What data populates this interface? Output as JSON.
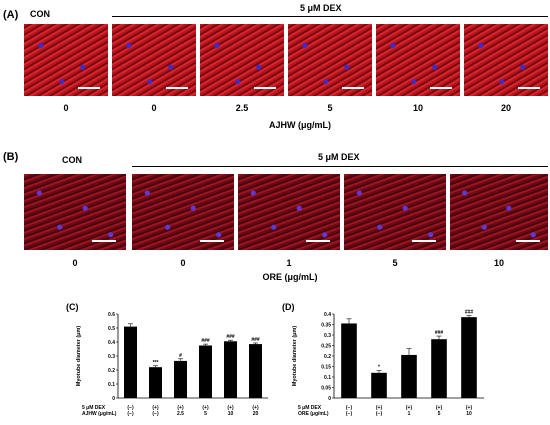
{
  "panelA": {
    "label": "(A)",
    "control": "CON",
    "treatment": "5 μM DEX",
    "doses": [
      "0",
      "0",
      "2.5",
      "5",
      "10",
      "20"
    ],
    "axis_label": "AJHW (μg/mL)"
  },
  "panelB": {
    "label": "(B)",
    "control": "CON",
    "treatment": "5 μM DEX",
    "doses": [
      "0",
      "0",
      "1",
      "5",
      "10"
    ],
    "axis_label": "ORE (μg/mL)"
  },
  "chart_data": [
    {
      "type": "bar",
      "panel": "(C)",
      "ylabel": "Myotube diameter (μm)",
      "ylim": [
        0,
        0.6
      ],
      "yticks": [
        "0",
        "0.1",
        "0.2",
        "0.3",
        "0.4",
        "0.5",
        "0.6"
      ],
      "values": [
        0.51,
        0.22,
        0.265,
        0.375,
        0.405,
        0.385
      ],
      "errors": [
        0.02,
        0.01,
        0.015,
        0.01,
        0.008,
        0.008
      ],
      "significance": [
        "",
        "***",
        "#",
        "###",
        "###",
        "###"
      ],
      "row1_label": "5 μM DEX",
      "row1": [
        "(−)",
        "(+)",
        "(+)",
        "(+)",
        "(+)",
        "(+)"
      ],
      "row2_label": "AJHW (μg/mL)",
      "row2": [
        "(−)",
        "(−)",
        "2.5",
        "5",
        "10",
        "20"
      ]
    },
    {
      "type": "bar",
      "panel": "(D)",
      "ylabel": "Myotube diameter (μm)",
      "ylim": [
        0,
        0.4
      ],
      "yticks": [
        "0",
        "0.05",
        "0.1",
        "0.15",
        "0.2",
        "0.25",
        "0.3",
        "0.35",
        "0.4"
      ],
      "values": [
        0.355,
        0.12,
        0.205,
        0.28,
        0.385
      ],
      "errors": [
        0.022,
        0.01,
        0.03,
        0.015,
        0.007
      ],
      "significance": [
        "",
        "*",
        "",
        "###",
        "###"
      ],
      "row1_label": "5 μM DEX",
      "row1": [
        "(−)",
        "(+)",
        "(+)",
        "(+)",
        "(+)"
      ],
      "row2_label": "ORE (μg/mL)",
      "row2": [
        "(−)",
        "(−)",
        "1",
        "5",
        "10"
      ]
    }
  ]
}
